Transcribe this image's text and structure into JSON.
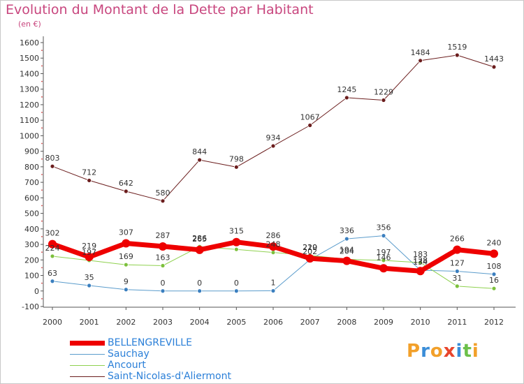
{
  "title": "Evolution du Montant de la Dette par Habitant",
  "subtitle": "(en €)",
  "brand": {
    "text": "Proxiti",
    "letters": [
      {
        "ch": "P",
        "color": "#f2a02a"
      },
      {
        "ch": "r",
        "color": "#3a8dd8"
      },
      {
        "ch": "o",
        "color": "#f2a02a"
      },
      {
        "ch": "x",
        "color": "#e8452c"
      },
      {
        "ch": "i",
        "color": "#3a8dd8"
      },
      {
        "ch": "t",
        "color": "#6cc04a"
      },
      {
        "ch": "i",
        "color": "#f2a02a"
      }
    ]
  },
  "chart_data": {
    "type": "line",
    "x": [
      "2000",
      "2001",
      "2002",
      "2003",
      "2004",
      "2005",
      "2006",
      "2007",
      "2008",
      "2009",
      "2010",
      "2011",
      "2012"
    ],
    "ylim": [
      -100,
      1600
    ],
    "yticks": [
      "-100",
      "0",
      "100",
      "200",
      "300",
      "400",
      "500",
      "600",
      "700",
      "800",
      "900",
      "1000",
      "1100",
      "1200",
      "1300",
      "1400",
      "1500",
      "1600"
    ],
    "grid": false,
    "legend_position": "bottom",
    "series": [
      {
        "name": "Saint-Nicolas-d'Aliermont",
        "color": "#6b1d1d",
        "marker": "#6b1d1d",
        "width": 1,
        "values": [
          803,
          712,
          642,
          580,
          844,
          798,
          934,
          1067,
          1245,
          1229,
          1484,
          1519,
          1443
        ],
        "labels": [
          "803",
          "712",
          "642",
          "580",
          "844",
          "798",
          "934",
          "1067",
          "1245",
          "1229",
          "1484",
          "1519",
          "1443"
        ]
      },
      {
        "name": "Sauchay",
        "color": "#5b9ccc",
        "marker": "#3b7fbf",
        "width": 1,
        "values": [
          63,
          35,
          9,
          0,
          0,
          0,
          1,
          202,
          336,
          356,
          134,
          127,
          108
        ],
        "labels": [
          "63",
          "35",
          "9",
          "0",
          "0",
          "0",
          "1",
          "202",
          "336",
          "356",
          "134",
          "127",
          "108"
        ]
      },
      {
        "name": "Ancourt",
        "color": "#8fd14f",
        "marker": "#7cc03c",
        "width": 1,
        "values": [
          224,
          197,
          169,
          163,
          286,
          268,
          248,
          229,
          204,
          197,
          183,
          31,
          16
        ],
        "labels": [
          "224",
          "197",
          "169",
          "163",
          "286",
          "",
          "248",
          "229",
          "204",
          "197",
          "183",
          "31",
          "16"
        ]
      },
      {
        "name": "BELLENGREVILLE",
        "color": "#ee0000",
        "marker": "#ee0000",
        "width": 7,
        "values": [
          302,
          219,
          307,
          287,
          265,
          315,
          286,
          210,
          194,
          146,
          128,
          266,
          240
        ],
        "labels": [
          "302",
          "219",
          "307",
          "287",
          "265",
          "315",
          "286",
          "210",
          "194",
          "146",
          "128",
          "266",
          "240"
        ]
      }
    ],
    "legend_order": [
      "BELLENGREVILLE",
      "Sauchay",
      "Ancourt",
      "Saint-Nicolas-d'Aliermont"
    ]
  }
}
